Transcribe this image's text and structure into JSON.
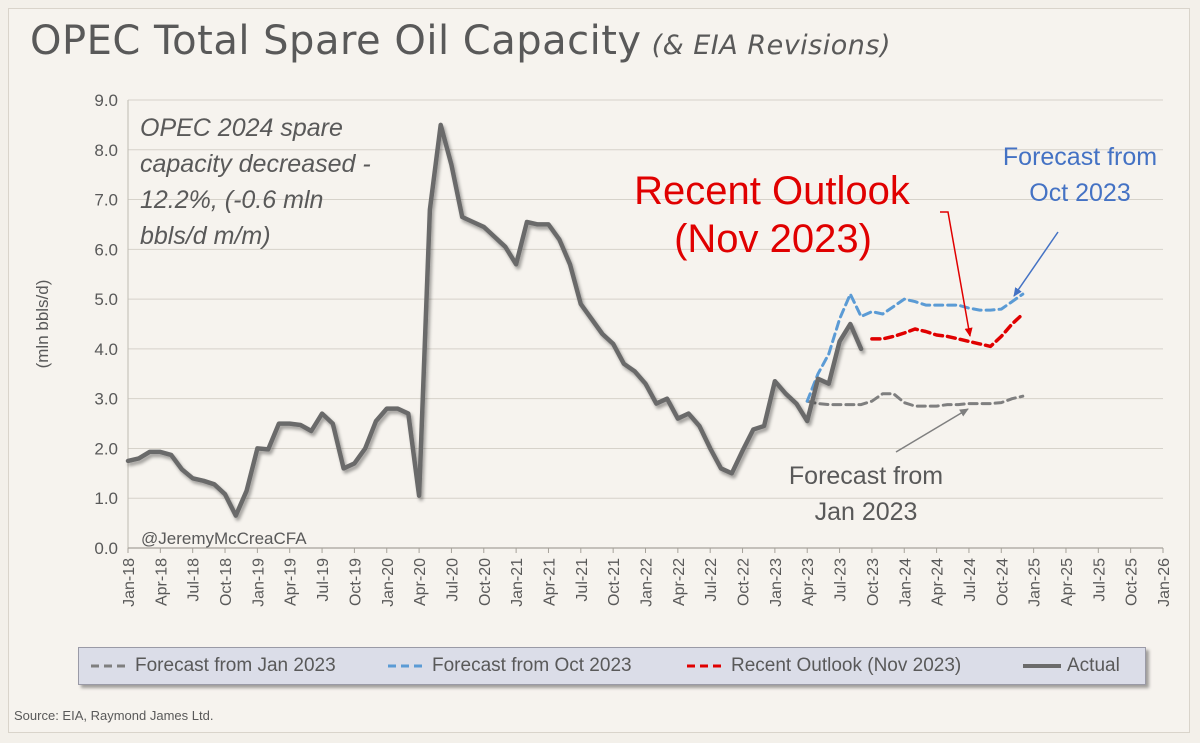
{
  "title": "OPEC Total Spare Oil Capacity",
  "subtitle": "(& EIA Revisions)",
  "source": "Source: EIA, Raymond James Ltd.",
  "colors": {
    "actual": "#6b6b6b",
    "jan2023": "#7f7f7f",
    "oct2023": "#5b9bd5",
    "nov2023": "#e00000",
    "annotation_text": "#595959",
    "outlook_text": "#e00000",
    "oct_label_text": "#4472c4"
  },
  "chart_data": {
    "type": "line",
    "ylabel": "(mln bbls/d)",
    "ylim": [
      0,
      9
    ],
    "yticks": [
      "0.0",
      "1.0",
      "2.0",
      "3.0",
      "4.0",
      "5.0",
      "6.0",
      "7.0",
      "8.0",
      "9.0"
    ],
    "x_start": "Jan-18",
    "x_end": "Jan-26",
    "x_ticks": [
      "Jan-18",
      "Apr-18",
      "Jul-18",
      "Oct-18",
      "Jan-19",
      "Apr-19",
      "Jul-19",
      "Oct-19",
      "Jan-20",
      "Apr-20",
      "Jul-20",
      "Oct-20",
      "Jan-21",
      "Apr-21",
      "Jul-21",
      "Oct-21",
      "Jan-22",
      "Apr-22",
      "Jul-22",
      "Oct-22",
      "Jan-23",
      "Apr-23",
      "Jul-23",
      "Oct-23",
      "Jan-24",
      "Apr-24",
      "Jul-24",
      "Oct-24",
      "Jan-25",
      "Apr-25",
      "Jul-25",
      "Oct-25",
      "Jan-26"
    ],
    "grid": true,
    "legend_position": "bottom",
    "series": [
      {
        "name": "Actual",
        "style": "solid",
        "x": [
          "Jan-18",
          "Feb-18",
          "Mar-18",
          "Apr-18",
          "May-18",
          "Jun-18",
          "Jul-18",
          "Aug-18",
          "Sep-18",
          "Oct-18",
          "Nov-18",
          "Dec-18",
          "Jan-19",
          "Feb-19",
          "Mar-19",
          "Apr-19",
          "May-19",
          "Jun-19",
          "Jul-19",
          "Aug-19",
          "Sep-19",
          "Oct-19",
          "Nov-19",
          "Dec-19",
          "Jan-20",
          "Feb-20",
          "Mar-20",
          "Apr-20",
          "May-20",
          "Jun-20",
          "Jul-20",
          "Aug-20",
          "Sep-20",
          "Oct-20",
          "Nov-20",
          "Dec-20",
          "Jan-21",
          "Feb-21",
          "Mar-21",
          "Apr-21",
          "May-21",
          "Jun-21",
          "Jul-21",
          "Aug-21",
          "Sep-21",
          "Oct-21",
          "Nov-21",
          "Dec-21",
          "Jan-22",
          "Feb-22",
          "Mar-22",
          "Apr-22",
          "May-22",
          "Jun-22",
          "Jul-22",
          "Aug-22",
          "Sep-22",
          "Oct-22",
          "Nov-22",
          "Dec-22",
          "Jan-23",
          "Feb-23",
          "Mar-23",
          "Apr-23",
          "May-23",
          "Jun-23",
          "Jul-23",
          "Aug-23",
          "Sep-23"
        ],
        "values": [
          1.75,
          1.8,
          1.93,
          1.93,
          1.87,
          1.58,
          1.4,
          1.35,
          1.28,
          1.08,
          0.65,
          1.15,
          2.0,
          1.98,
          2.5,
          2.5,
          2.47,
          2.35,
          2.7,
          2.5,
          1.6,
          1.7,
          2.0,
          2.55,
          2.8,
          2.8,
          2.7,
          1.05,
          6.8,
          8.5,
          7.7,
          6.65,
          6.55,
          6.45,
          6.25,
          6.05,
          5.7,
          6.55,
          6.5,
          6.5,
          6.2,
          5.7,
          4.9,
          4.6,
          4.3,
          4.1,
          3.7,
          3.55,
          3.3,
          2.9,
          3.0,
          2.6,
          2.7,
          2.45,
          2.0,
          1.6,
          1.5,
          1.95,
          2.38,
          2.45,
          3.35,
          3.1,
          2.9,
          2.55,
          3.4,
          3.3,
          4.15,
          4.5,
          4.0
        ]
      },
      {
        "name": "Forecast from Jan 2023",
        "style": "dashed",
        "x": [
          "Apr-23",
          "May-23",
          "Jun-23",
          "Jul-23",
          "Aug-23",
          "Sep-23",
          "Oct-23",
          "Nov-23",
          "Dec-23",
          "Jan-24",
          "Feb-24",
          "Mar-24",
          "Apr-24",
          "May-24",
          "Jun-24",
          "Jul-24",
          "Aug-24",
          "Sep-24",
          "Oct-24",
          "Nov-24",
          "Dec-24"
        ],
        "values": [
          2.95,
          2.9,
          2.88,
          2.88,
          2.88,
          2.88,
          2.95,
          3.1,
          3.1,
          2.92,
          2.85,
          2.85,
          2.85,
          2.88,
          2.88,
          2.9,
          2.9,
          2.9,
          2.92,
          3.0,
          3.05
        ]
      },
      {
        "name": "Forecast from Oct 2023",
        "style": "dashed",
        "x": [
          "Apr-23",
          "May-23",
          "Jun-23",
          "Jul-23",
          "Aug-23",
          "Sep-23",
          "Oct-23",
          "Nov-23",
          "Dec-23",
          "Jan-24",
          "Feb-24",
          "Mar-24",
          "Apr-24",
          "May-24",
          "Jun-24",
          "Jul-24",
          "Aug-24",
          "Sep-24",
          "Oct-24",
          "Nov-24",
          "Dec-24"
        ],
        "values": [
          2.95,
          3.5,
          3.9,
          4.6,
          5.1,
          4.65,
          4.75,
          4.7,
          4.85,
          5.0,
          4.95,
          4.88,
          4.88,
          4.88,
          4.88,
          4.82,
          4.78,
          4.78,
          4.8,
          4.95,
          5.1
        ]
      },
      {
        "name": "Recent Outlook (Nov 2023)",
        "style": "dashed",
        "x": [
          "Oct-23",
          "Nov-23",
          "Dec-23",
          "Jan-24",
          "Feb-24",
          "Mar-24",
          "Apr-24",
          "May-24",
          "Jun-24",
          "Jul-24",
          "Aug-24",
          "Sep-24",
          "Oct-24",
          "Nov-24",
          "Dec-24"
        ],
        "values": [
          4.2,
          4.2,
          4.25,
          4.32,
          4.4,
          4.35,
          4.28,
          4.25,
          4.2,
          4.15,
          4.1,
          4.05,
          4.25,
          4.5,
          4.7
        ]
      }
    ],
    "annotations": {
      "summary": [
        "OPEC 2024 spare",
        "capacity decreased -",
        "12.2%, (-0.6 mln",
        "bbls/d m/m)"
      ],
      "handle": "@JeremyMcCreaCFA",
      "recent_outlook": [
        "Recent Outlook",
        "(Nov 2023)"
      ],
      "forecast_oct": [
        "Forecast  from",
        "Oct 2023"
      ],
      "forecast_jan": [
        "Forecast  from",
        "Jan 2023"
      ]
    }
  }
}
